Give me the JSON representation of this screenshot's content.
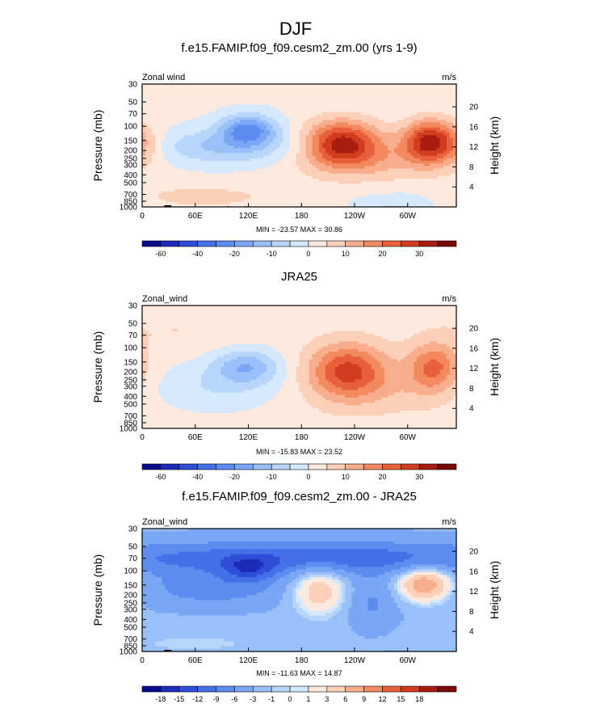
{
  "figure_title": "DJF",
  "chart_data": [
    {
      "type": "heatmap",
      "title": "f.e15.FAMIP.f09_f09.cesm2_zm.00 (yrs 1-9)",
      "left_label": "Zonal wind",
      "units": "m/s",
      "ylabel": "Pressure (mb)",
      "y2label": "Height (km)",
      "x_ticks": [
        "0",
        "60E",
        "120E",
        "180",
        "120W",
        "60W"
      ],
      "x_tick_lon": [
        0,
        60,
        120,
        180,
        240,
        300
      ],
      "y_ticks": [
        "30",
        "50",
        "70",
        "100",
        "150",
        "200",
        "250",
        "300",
        "400",
        "500",
        "700",
        "850",
        "1000"
      ],
      "y_tick_p": [
        30,
        50,
        70,
        100,
        150,
        200,
        250,
        300,
        400,
        500,
        700,
        850,
        1000
      ],
      "y2_ticks": [
        "20",
        "16",
        "12",
        "8",
        "4"
      ],
      "y2_tick_km": [
        20,
        16,
        12,
        8,
        4
      ],
      "stats": "MIN = -23.57  MAX =  30.86",
      "min": -23.57,
      "max": 30.86,
      "colorbar_labels": [
        "-60",
        "-40",
        "-20",
        "-10",
        "0",
        "10",
        "20",
        "30"
      ],
      "colorbar_levels": [
        -70,
        -60,
        -50,
        -40,
        -30,
        -20,
        -15,
        -10,
        -5,
        0,
        5,
        10,
        15,
        20,
        25,
        30,
        35
      ],
      "xlim": [
        0,
        355
      ],
      "ylim": [
        1000,
        30
      ],
      "features": [
        {
          "kind": "jet",
          "lon": 225,
          "p": 160,
          "amp": 28,
          "sx": 28,
          "sy": 0.45
        },
        {
          "kind": "jet",
          "lon": 325,
          "p": 155,
          "amp": 30,
          "sx": 20,
          "sy": 0.42
        },
        {
          "kind": "jet",
          "lon": 0,
          "p": 170,
          "amp": 8,
          "sx": 18,
          "sy": 0.4
        },
        {
          "kind": "jet",
          "lon": 120,
          "p": 110,
          "amp": -22,
          "sx": 22,
          "sy": 0.3
        },
        {
          "kind": "jet",
          "lon": 95,
          "p": 180,
          "amp": -12,
          "sx": 60,
          "sy": 0.35
        },
        {
          "kind": "jet",
          "lon": 260,
          "p": 250,
          "amp": 10,
          "sx": 60,
          "sy": 0.5
        },
        {
          "kind": "jet",
          "lon": 60,
          "p": 750,
          "amp": 6,
          "sx": 70,
          "sy": 0.25
        },
        {
          "kind": "jet",
          "lon": 300,
          "p": 800,
          "amp": -4,
          "sx": 50,
          "sy": 0.3
        }
      ],
      "baseline": 1,
      "topography": [
        [
          10,
          50,
          990
        ],
        [
          25,
          33,
          955
        ],
        [
          96,
          98,
          980
        ],
        [
          115,
          118,
          985
        ],
        [
          272,
          300,
          985
        ]
      ]
    },
    {
      "type": "heatmap",
      "title": "JRA25",
      "left_label": "Zonal_wind",
      "units": "m/s",
      "ylabel": "Pressure (mb)",
      "y2label": "Height (km)",
      "x_ticks": [
        "0",
        "60E",
        "120E",
        "180",
        "120W",
        "60W"
      ],
      "x_tick_lon": [
        0,
        60,
        120,
        180,
        240,
        300
      ],
      "y_ticks": [
        "30",
        "50",
        "70",
        "100",
        "150",
        "200",
        "250",
        "300",
        "400",
        "500",
        "700",
        "850",
        "1000"
      ],
      "y_tick_p": [
        30,
        50,
        70,
        100,
        150,
        200,
        250,
        300,
        400,
        500,
        700,
        850,
        1000
      ],
      "y2_ticks": [
        "20",
        "16",
        "12",
        "8",
        "4"
      ],
      "y2_tick_km": [
        20,
        16,
        12,
        8,
        4
      ],
      "stats": "MIN = -15.83  MAX =  23.52",
      "min": -15.83,
      "max": 23.52,
      "colorbar_labels": [
        "-60",
        "-40",
        "-20",
        "-10",
        "0",
        "10",
        "20",
        "30"
      ],
      "colorbar_levels": [
        -70,
        -60,
        -50,
        -40,
        -30,
        -20,
        -15,
        -10,
        -5,
        0,
        5,
        10,
        15,
        20,
        25,
        30,
        35
      ],
      "xlim": [
        0,
        355
      ],
      "ylim": [
        1000,
        30
      ],
      "features": [
        {
          "kind": "jet",
          "lon": 232,
          "p": 190,
          "amp": 22,
          "sx": 30,
          "sy": 0.55
        },
        {
          "kind": "jet",
          "lon": 330,
          "p": 175,
          "amp": 18,
          "sx": 20,
          "sy": 0.5
        },
        {
          "kind": "jet",
          "lon": 118,
          "p": 170,
          "amp": -15,
          "sx": 26,
          "sy": 0.35
        },
        {
          "kind": "jet",
          "lon": 80,
          "p": 300,
          "amp": -7,
          "sx": 60,
          "sy": 0.5
        },
        {
          "kind": "jet",
          "lon": 270,
          "p": 300,
          "amp": 6,
          "sx": 70,
          "sy": 0.6
        },
        {
          "kind": "jet",
          "lon": 40,
          "p": 60,
          "amp": 3,
          "sx": 60,
          "sy": 0.4
        }
      ],
      "baseline": 2,
      "topography": []
    },
    {
      "type": "heatmap",
      "title": "f.e15.FAMIP.f09_f09.cesm2_zm.00 - JRA25",
      "left_label": "Zonal_wind",
      "units": "m/s",
      "ylabel": "Pressure (mb)",
      "y2label": "Height (km)",
      "x_ticks": [
        "0",
        "60E",
        "120E",
        "180",
        "120W",
        "60W"
      ],
      "x_tick_lon": [
        0,
        60,
        120,
        180,
        240,
        300
      ],
      "y_ticks": [
        "30",
        "50",
        "70",
        "100",
        "150",
        "200",
        "250",
        "300",
        "400",
        "500",
        "700",
        "850",
        "1000"
      ],
      "y_tick_p": [
        30,
        50,
        70,
        100,
        150,
        200,
        250,
        300,
        400,
        500,
        700,
        850,
        1000
      ],
      "y2_ticks": [
        "20",
        "16",
        "12",
        "8",
        "4"
      ],
      "y2_tick_km": [
        20,
        16,
        12,
        8,
        4
      ],
      "stats": "MIN = -11.63  MAX = 14.87",
      "min": -11.63,
      "max": 14.87,
      "colorbar_labels": [
        "-18",
        "-15",
        "-12",
        "-9",
        "-6",
        "-3",
        "-1",
        "0",
        "1",
        "3",
        "6",
        "9",
        "12",
        "15",
        "18"
      ],
      "colorbar_levels": [
        -21,
        -18,
        -15,
        -12,
        -9,
        -6,
        -3,
        -1,
        0,
        1,
        3,
        6,
        9,
        12,
        15,
        18,
        21
      ],
      "xlim": [
        0,
        355
      ],
      "ylim": [
        1000,
        30
      ],
      "features": [
        {
          "kind": "jet",
          "lon": 180,
          "p": 70,
          "amp": -9,
          "sx": 200,
          "sy": 0.35
        },
        {
          "kind": "jet",
          "lon": 120,
          "p": 95,
          "amp": -7,
          "sx": 20,
          "sy": 0.25
        },
        {
          "kind": "jet",
          "lon": 80,
          "p": 170,
          "amp": -5,
          "sx": 60,
          "sy": 0.35
        },
        {
          "kind": "jet",
          "lon": 200,
          "p": 170,
          "amp": 8,
          "sx": 22,
          "sy": 0.5
        },
        {
          "kind": "jet",
          "lon": 320,
          "p": 145,
          "amp": 12,
          "sx": 22,
          "sy": 0.35
        },
        {
          "kind": "jet",
          "lon": 260,
          "p": 250,
          "amp": -4,
          "sx": 20,
          "sy": 0.5
        },
        {
          "kind": "jet",
          "lon": 60,
          "p": 800,
          "amp": 2,
          "sx": 60,
          "sy": 0.2
        }
      ],
      "baseline": -2.5,
      "topography": [
        [
          10,
          50,
          990
        ],
        [
          25,
          33,
          955
        ],
        [
          272,
          300,
          985
        ]
      ]
    }
  ],
  "colors": {
    "colormap": [
      "#0a0a8c",
      "#1d2bb8",
      "#2f4ed8",
      "#4470e8",
      "#5c8cf0",
      "#7aa7f5",
      "#99c0f8",
      "#b8d6fb",
      "#d5e8fc",
      "#fde9dd",
      "#fbcfb8",
      "#f8ad8c",
      "#f3895f",
      "#e8603a",
      "#d23c1f",
      "#a81d10",
      "#7a0a05"
    ],
    "frame": "#000000",
    "topography": "#000000"
  }
}
